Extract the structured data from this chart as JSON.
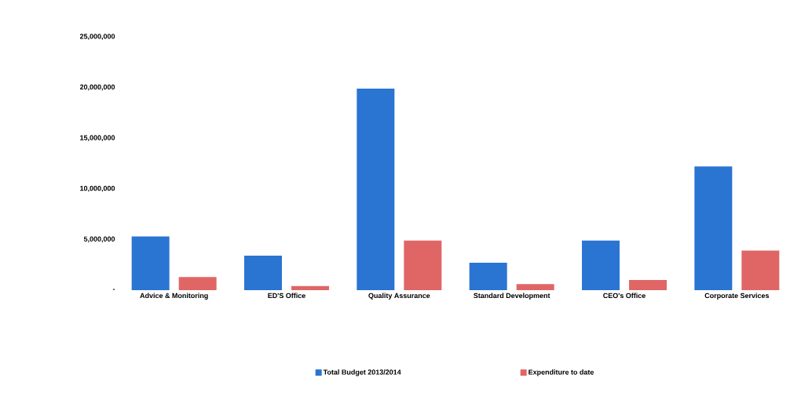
{
  "chart_data": {
    "type": "bar",
    "categories": [
      "Advice & Monitoring",
      "ED'S Office",
      "Quality Assurance",
      "Standard Development",
      "CEO's Office",
      "Corporate Services"
    ],
    "series": [
      {
        "name": "Total Budget 2013/2014",
        "color": "#2a74d2",
        "values": [
          5300000,
          3400000,
          19900000,
          2700000,
          4900000,
          12200000
        ]
      },
      {
        "name": "Expenditure to date",
        "color": "#e06666",
        "values": [
          1300000,
          400000,
          4900000,
          600000,
          1000000,
          3900000
        ]
      }
    ],
    "ylim": [
      0,
      25000000
    ],
    "yticks": [
      {
        "value": 0,
        "label": "-"
      },
      {
        "value": 5000000,
        "label": "5,000,000"
      },
      {
        "value": 10000000,
        "label": "10,000,000"
      },
      {
        "value": 15000000,
        "label": "15,000,000"
      },
      {
        "value": 20000000,
        "label": "20,000,000"
      },
      {
        "value": 25000000,
        "label": "25,000,000"
      }
    ],
    "legend": "bottom"
  }
}
